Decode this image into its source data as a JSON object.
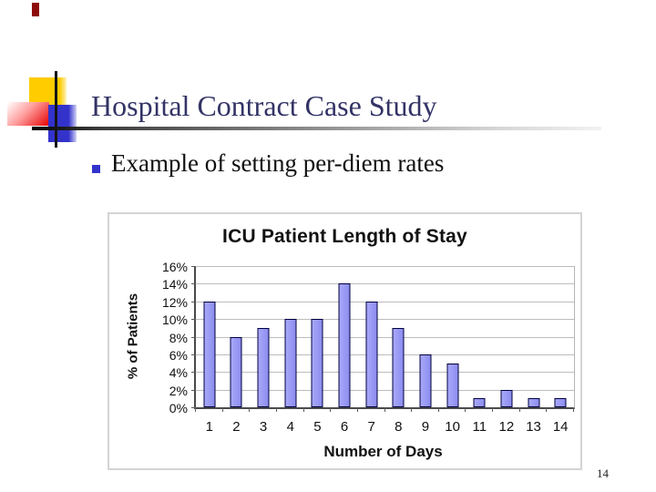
{
  "slide": {
    "title": "Hospital Contract Case Study",
    "bullet": "Example of setting per-diem rates",
    "page_number": "14"
  },
  "colors": {
    "title_text": "#333366",
    "bullet_square": "#3333cc",
    "accent_yellow": "#ffcc00",
    "accent_red": "#e60000",
    "accent_blue": "#3333cc",
    "bookmark_red": "#8e0b0b",
    "bar_fill": "#9999f5",
    "bar_border": "#000040",
    "gridline": "#bdbdbd",
    "chart_border": "#d4d4d4"
  },
  "chart_data": {
    "type": "bar",
    "title": "ICU Patient Length of Stay",
    "xlabel": "Number of Days",
    "ylabel": "% of Patients",
    "categories": [
      "1",
      "2",
      "3",
      "4",
      "5",
      "6",
      "7",
      "8",
      "9",
      "10",
      "11",
      "12",
      "13",
      "14"
    ],
    "values": [
      12,
      8,
      9,
      10,
      10,
      14,
      12,
      9,
      6,
      5,
      1,
      2,
      1,
      1
    ],
    "unit": "%",
    "ylim": [
      0,
      16
    ],
    "ytick_step": 2,
    "ytick_labels": [
      "16%",
      "14%",
      "12%",
      "10%",
      "8%",
      "6%",
      "4%",
      "2%",
      "0%"
    ],
    "grid": true,
    "legend": "none"
  }
}
